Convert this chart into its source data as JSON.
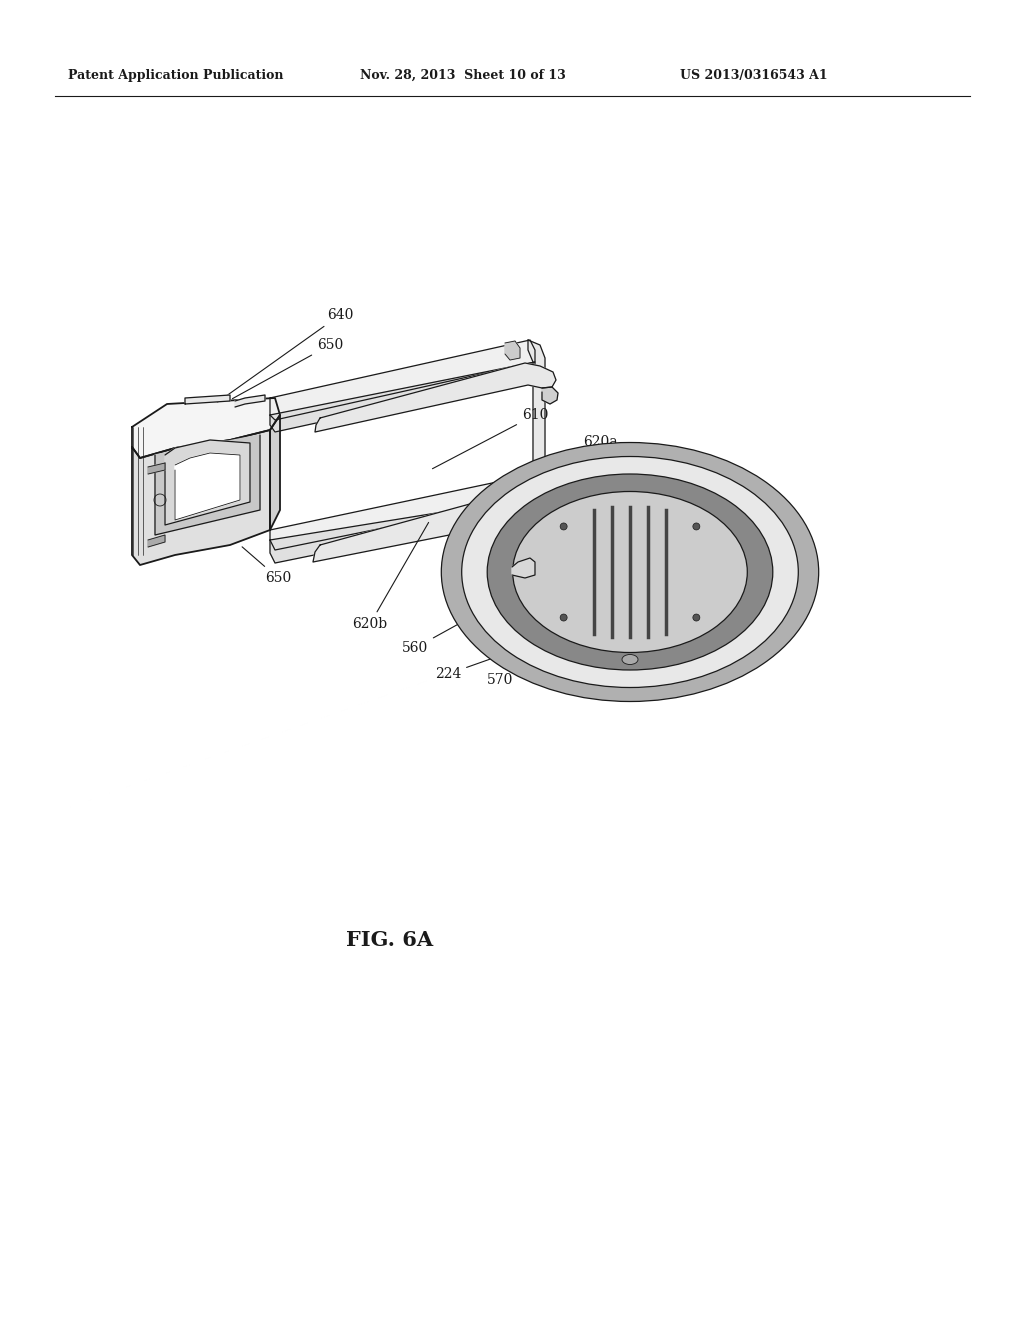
{
  "header_left": "Patent Application Publication",
  "header_mid": "Nov. 28, 2013  Sheet 10 of 13",
  "header_right": "US 2013/0316543 A1",
  "figure_label": "FIG. 6A",
  "background_color": "#ffffff",
  "line_color": "#1a1a1a",
  "header_fontsize": 9,
  "label_fontsize": 10,
  "figure_label_fontsize": 15
}
